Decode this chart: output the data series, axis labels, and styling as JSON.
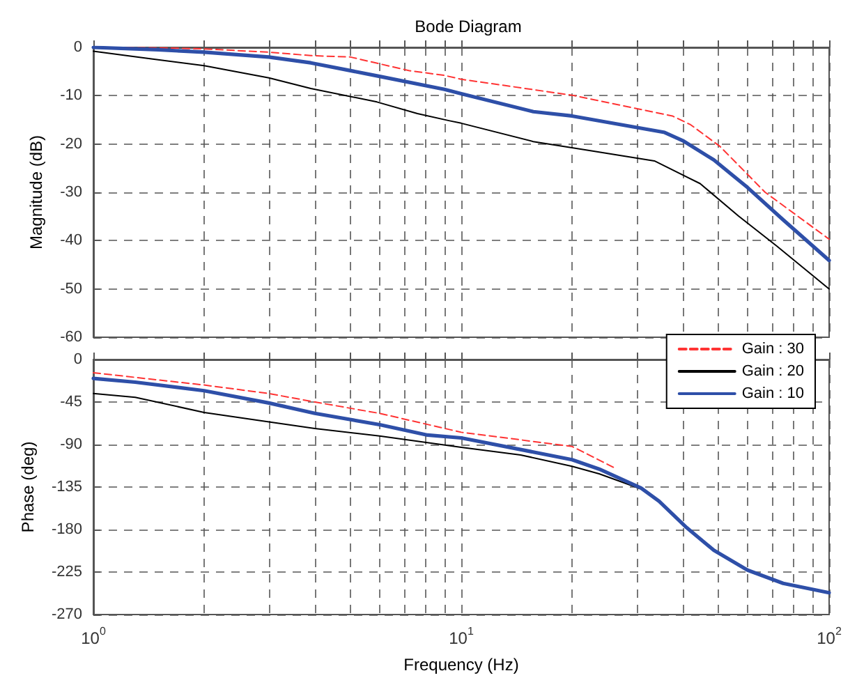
{
  "chart_data": [
    {
      "type": "line",
      "title": "Bode Diagram",
      "ylabel": "Magnitude (dB)",
      "xlim": [
        1,
        100
      ],
      "log": "x",
      "tick_labels": "y",
      "grid": true,
      "legend": "bottom right",
      "marker": "none",
      "xticks": [
        {
          "value": 1,
          "label": null
        },
        {
          "value": 2,
          "label": null
        },
        {
          "value": 3,
          "label": null
        },
        {
          "value": 4,
          "label": null
        },
        {
          "value": 5,
          "label": null
        },
        {
          "value": 6,
          "label": null
        },
        {
          "value": 7,
          "label": null
        },
        {
          "value": 8,
          "label": null
        },
        {
          "value": 9,
          "label": null
        },
        {
          "value": 10,
          "label": null
        },
        {
          "value": 20,
          "label": null
        },
        {
          "value": 30,
          "label": null
        },
        {
          "value": 40,
          "label": null
        },
        {
          "value": 50,
          "label": null
        },
        {
          "value": 60,
          "label": null
        },
        {
          "value": 70,
          "label": null
        },
        {
          "value": 80,
          "label": null
        },
        {
          "value": 90,
          "label": null
        },
        {
          "value": 100,
          "label": null
        }
      ],
      "ylim": [
        -60,
        0
      ],
      "yticks": [
        -60,
        -50,
        -40,
        -30,
        -20,
        -10,
        0
      ],
      "series": [
        {
          "name": "Gain : 30",
          "color": "#ff3333",
          "line_style": "dashed",
          "x": [
            1,
            1.5,
            2,
            3,
            3.9,
            5,
            7.2,
            9,
            10,
            20,
            37.5,
            42,
            50.5,
            67,
            100
          ],
          "values": [
            0,
            -0.1,
            -0.3,
            -1,
            -1.7,
            -2,
            -4.8,
            -5.8,
            -6.6,
            -9.9,
            -14.2,
            -16,
            -20.5,
            -30,
            -39.7
          ]
        },
        {
          "name": "Gain : 20",
          "color": "#000000",
          "line_style": "solid",
          "x": [
            1,
            1.45,
            2,
            3,
            3.9,
            5.9,
            7.6,
            9.3,
            10,
            15.7,
            21.7,
            33.5,
            44.6,
            56.7,
            72,
            100
          ],
          "values": [
            -0.8,
            -2.4,
            -3.8,
            -6.3,
            -8.5,
            -11.3,
            -13.7,
            -15.2,
            -15.7,
            -19.5,
            -21.2,
            -23.5,
            -28.2,
            -34.9,
            -41.1,
            -50
          ]
        },
        {
          "name": "Gain : 10",
          "color": "#2e4fa8",
          "line_style": "solid",
          "x": [
            1,
            1.5,
            2,
            3,
            3.9,
            6,
            9,
            10,
            15.7,
            20,
            35.7,
            40,
            48.6,
            60,
            75,
            100
          ],
          "values": [
            0,
            -0.5,
            -1,
            -2,
            -3.2,
            -6,
            -8.7,
            -9.6,
            -13.3,
            -14.2,
            -17.6,
            -19.3,
            -23.3,
            -29,
            -35.7,
            -44.1
          ]
        }
      ]
    },
    {
      "type": "line",
      "xlabel": "Frequency (Hz)",
      "ylabel": "Phase (deg)",
      "xlim": [
        1,
        100
      ],
      "log": "x",
      "grid": true,
      "marker": "none",
      "xticks": [
        {
          "value": 1,
          "label": "10$^{0}$"
        },
        {
          "value": 2,
          "label": null
        },
        {
          "value": 3,
          "label": null
        },
        {
          "value": 4,
          "label": null
        },
        {
          "value": 5,
          "label": null
        },
        {
          "value": 6,
          "label": null
        },
        {
          "value": 7,
          "label": null
        },
        {
          "value": 8,
          "label": null
        },
        {
          "value": 9,
          "label": null
        },
        {
          "value": 10,
          "label": "10$^{1}$"
        },
        {
          "value": 20,
          "label": null
        },
        {
          "value": 30,
          "label": null
        },
        {
          "value": 40,
          "label": null
        },
        {
          "value": 50,
          "label": null
        },
        {
          "value": 60,
          "label": null
        },
        {
          "value": 70,
          "label": null
        },
        {
          "value": 80,
          "label": null
        },
        {
          "value": 90,
          "label": null
        },
        {
          "value": 100,
          "label": "10$^{2}$"
        }
      ],
      "ylim": [
        -270,
        0
      ],
      "yticks": [
        -270,
        -225,
        -180,
        -135,
        -90,
        -45,
        0
      ],
      "series": [
        {
          "color": "#ff3333",
          "line_style": "dashed",
          "x": [
            1,
            2,
            3,
            4,
            6,
            10,
            20,
            25.9
          ],
          "values": [
            -14,
            -27,
            -36,
            -45,
            -57,
            -77,
            -92,
            -114
          ]
        },
        {
          "color": "#000000",
          "line_style": "solid",
          "x": [
            1,
            1.3,
            2,
            3,
            4,
            6,
            10,
            14.5,
            20,
            23.7,
            30.8
          ],
          "values": [
            -36,
            -40,
            -56,
            -66,
            -73,
            -81,
            -93,
            -101,
            -113,
            -121,
            -137
          ]
        },
        {
          "color": "#2e4fa8",
          "line_style": "solid",
          "x": [
            1,
            1.3,
            2,
            3,
            4,
            6,
            8.1,
            10,
            20,
            23.7,
            30.8,
            34.5,
            41,
            48.6,
            60,
            75,
            100
          ],
          "values": [
            -20,
            -24,
            -33,
            -46,
            -57,
            -69,
            -80,
            -83,
            -106,
            -116,
            -136,
            -150,
            -178,
            -202,
            -223,
            -237,
            -247
          ]
        }
      ]
    }
  ]
}
